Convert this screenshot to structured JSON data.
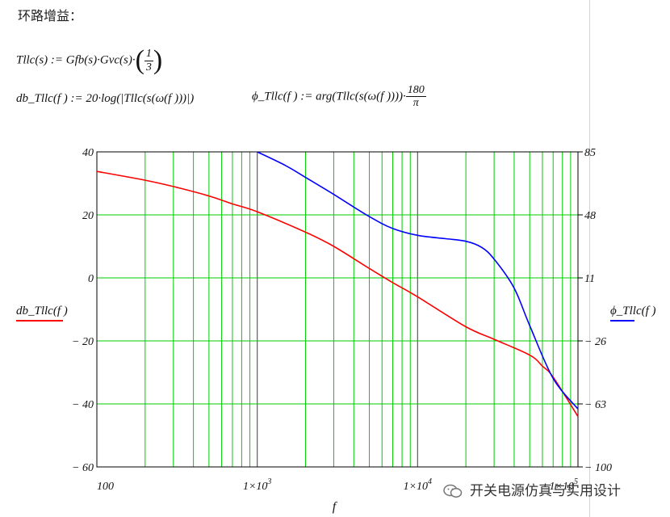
{
  "heading": "环路增益：",
  "equations": {
    "eq1_lhs": "Tllc(s) := Gfb(s)·Gvc(s)·",
    "eq1_frac_num": "1",
    "eq1_frac_den": "3",
    "eq2_a": "db_Tllc(f ) := 20·log(",
    "eq2_b": "|Tllc(s(ω(f )))|",
    "eq2_c": ")",
    "eq3_lhs": "ϕ_Tllc(f ) := arg(Tllc(s(ω(f ))))·",
    "eq3_frac_num": "180",
    "eq3_frac_den": "π"
  },
  "watermark": "开关电源仿真与实用设计",
  "colors": {
    "grid": "#00cc00",
    "db_series": "#ff0000",
    "phase_series": "#0000ff",
    "decade_line": "#606060"
  },
  "chart_data": {
    "type": "line",
    "xlabel": "f",
    "xscale": "log",
    "xlim": [
      100,
      100000
    ],
    "x_tick_labels": [
      "100",
      "1×10",
      "1×10",
      "1×10"
    ],
    "x_tick_exponents": [
      "",
      "3",
      "4",
      "5"
    ],
    "y_left": {
      "label": "db_Tllc(f )",
      "lim": [
        -60,
        40
      ],
      "ticks": [
        "40",
        "20",
        "0",
        "− 20",
        "− 40",
        "− 60"
      ]
    },
    "y_right": {
      "label": "ϕ_Tllc(f )",
      "lim": [
        -100,
        85
      ],
      "ticks": [
        "85",
        "48",
        "11",
        "− 26",
        "− 63",
        "− 100"
      ]
    },
    "grid": true,
    "series": [
      {
        "name": "db_Tllc(f )",
        "axis": "left",
        "color": "#ff0000",
        "x": [
          100,
          200,
          300,
          500,
          700,
          1000,
          2000,
          3000,
          5000,
          7000,
          10000,
          20000,
          30000,
          50000,
          60000,
          70000,
          100000
        ],
        "y": [
          33.8,
          31,
          29,
          26,
          23.5,
          21,
          14.5,
          10,
          3,
          -1.5,
          -6,
          -15.5,
          -19.5,
          -24.5,
          -28,
          -31.5,
          -44
        ]
      },
      {
        "name": "ϕ_Tllc(f )",
        "axis": "right",
        "color": "#0000ff",
        "x": [
          1000,
          1500,
          2000,
          3000,
          5000,
          7000,
          10000,
          15000,
          20000,
          25000,
          30000,
          40000,
          50000,
          70000,
          100000
        ],
        "y": [
          85,
          77,
          70,
          60,
          47,
          40,
          36,
          34,
          32.5,
          29,
          22,
          5,
          -17,
          -48,
          -66
        ]
      }
    ]
  }
}
